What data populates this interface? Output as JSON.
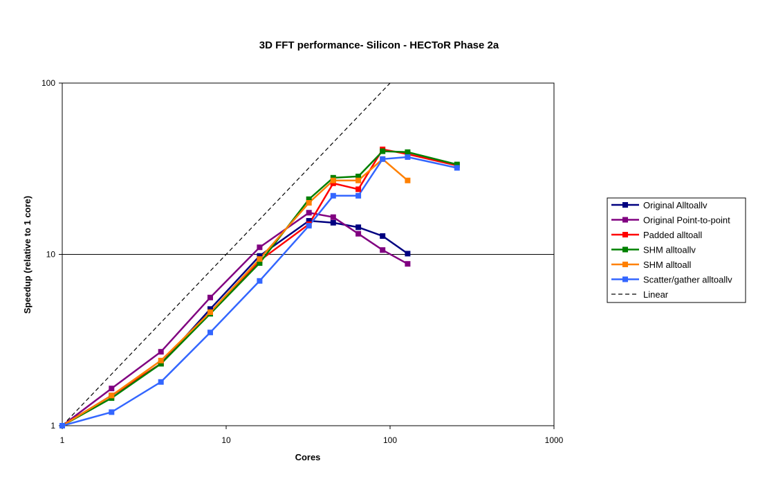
{
  "chart_data": {
    "type": "line",
    "title": "3D FFT performance- Silicon - HECToR Phase 2a",
    "xlabel": "Cores",
    "ylabel": "Speedup (relative to 1 core)",
    "xscale": "log",
    "yscale": "log",
    "xlim": [
      1,
      1000
    ],
    "ylim": [
      1,
      100
    ],
    "xticks": [
      "1",
      "10",
      "100",
      "1000"
    ],
    "yticks": [
      "1",
      "10",
      "100"
    ],
    "grid": "horizontal major lines",
    "legend_position": "right",
    "series": [
      {
        "name": "Original Alltoallv",
        "color": "#000080",
        "marker": "square",
        "dash": "solid",
        "x": [
          1,
          2,
          4,
          8,
          16,
          32,
          45,
          64,
          90,
          128
        ],
        "y": [
          1,
          1.5,
          2.3,
          4.8,
          9.8,
          15.7,
          15.3,
          14.4,
          12.8,
          10.1
        ]
      },
      {
        "name": "Original Point-to-point",
        "color": "#800080",
        "marker": "square",
        "dash": "solid",
        "x": [
          1,
          2,
          4,
          8,
          16,
          32,
          45,
          64,
          90,
          128
        ],
        "y": [
          1,
          1.65,
          2.7,
          5.6,
          11.0,
          17.5,
          16.5,
          13.2,
          10.6,
          8.8
        ]
      },
      {
        "name": "Padded alltoall",
        "color": "#ff0000",
        "marker": "square",
        "dash": "solid",
        "x": [
          1,
          2,
          4,
          8,
          16,
          32,
          45,
          64,
          90,
          128,
          256
        ],
        "y": [
          1,
          1.5,
          2.3,
          4.6,
          9.2,
          15.0,
          26.0,
          24.0,
          41.0,
          38.5,
          33.0
        ]
      },
      {
        "name": "SHM alltoallv",
        "color": "#008000",
        "marker": "square",
        "dash": "solid",
        "x": [
          1,
          2,
          4,
          8,
          16,
          32,
          45,
          64,
          90,
          128,
          256
        ],
        "y": [
          1,
          1.45,
          2.3,
          4.5,
          8.9,
          21.0,
          28.0,
          28.5,
          40.0,
          39.5,
          33.5
        ]
      },
      {
        "name": "SHM alltoall",
        "color": "#ff8000",
        "marker": "square",
        "dash": "solid",
        "x": [
          1,
          2,
          4,
          8,
          16,
          32,
          45,
          64,
          90,
          128
        ],
        "y": [
          1,
          1.5,
          2.4,
          4.6,
          9.4,
          20.0,
          27.0,
          27.0,
          36.0,
          27.0
        ]
      },
      {
        "name": "Scatter/gather alltoallv",
        "color": "#3366ff",
        "marker": "square",
        "dash": "solid",
        "x": [
          1,
          2,
          4,
          8,
          16,
          32,
          45,
          64,
          90,
          128,
          256
        ],
        "y": [
          1,
          1.2,
          1.8,
          3.5,
          7.0,
          14.7,
          22.0,
          22.0,
          36.0,
          37.0,
          32.0
        ]
      },
      {
        "name": "Linear",
        "color": "#000000",
        "marker": "none",
        "dash": "dashed",
        "x": [
          1,
          2,
          4,
          8,
          16,
          32,
          64,
          128
        ],
        "y": [
          1,
          2,
          4,
          8,
          16,
          32,
          64,
          128
        ]
      }
    ]
  }
}
